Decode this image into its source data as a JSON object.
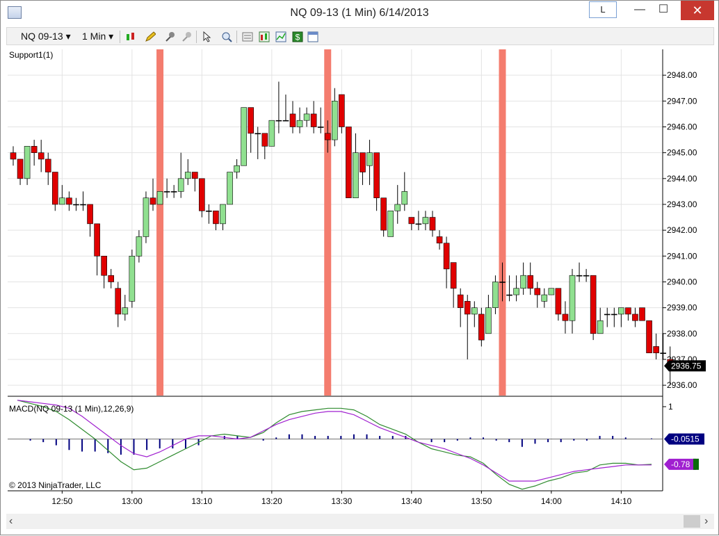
{
  "window": {
    "title": "NQ 09-13 (1 Min)  6/14/2013",
    "l_button": "L",
    "minimize": "—",
    "maximize": "☐",
    "close": "✕"
  },
  "toolbar": {
    "instrument": "NQ 09-13",
    "interval": "1 Min",
    "dropdown_glyph": "▾",
    "icons": [
      "candlestick-icon",
      "pencil-icon",
      "pin-icon",
      "magnet-icon",
      "cursor-icon",
      "zoom-icon",
      "properties-icon",
      "strategies-icon",
      "indicators-icon",
      "dollar-icon",
      "data-box-icon"
    ]
  },
  "labels": {
    "support": "Support1(1)",
    "macd": "MACD(NQ 09-13 (1 Min),12,26,9)",
    "copyright": "© 2013 NinjaTrader, LLC"
  },
  "colors": {
    "up": "#90e090",
    "down": "#e00000",
    "highlight": "#f47c6e",
    "macd_line": "#2e8b2e",
    "signal_line": "#a020d0",
    "histogram": "#000080"
  },
  "chart_data": [
    {
      "type": "candlestick",
      "title": "NQ 09-13 (1 Min)",
      "y_ticks": [
        "2948.00",
        "2947.00",
        "2946.00",
        "2945.00",
        "2944.00",
        "2943.00",
        "2942.00",
        "2941.00",
        "2940.00",
        "2939.00",
        "2938.00",
        "2937.00",
        "2936.00"
      ],
      "ylim": [
        2935.6,
        2949.0
      ],
      "x_ticks": [
        "12:50",
        "13:00",
        "13:10",
        "13:20",
        "13:30",
        "13:40",
        "13:50",
        "14:00",
        "14:10"
      ],
      "last_price": "2936.75",
      "highlight_times": [
        "13:04",
        "13:28",
        "13:53"
      ],
      "candles": [
        [
          2945,
          2944.75,
          2945.25,
          2944.5
        ],
        [
          2944.75,
          2944,
          2944.75,
          2943.75
        ],
        [
          2944,
          2945.25,
          2945.25,
          2943.75
        ],
        [
          2945.25,
          2945,
          2945.5,
          2944.5
        ],
        [
          2945,
          2944.75,
          2945.5,
          2944.25
        ],
        [
          2944.75,
          2944.25,
          2945,
          2943.75
        ],
        [
          2944.25,
          2943,
          2944.25,
          2942.75
        ],
        [
          2943,
          2943.25,
          2943.75,
          2943
        ],
        [
          2943.25,
          2943,
          2943.5,
          2942.75
        ],
        [
          2943,
          2943,
          2943.25,
          2942.75
        ],
        [
          2943,
          2943,
          2943.5,
          2942.75
        ],
        [
          2943,
          2942.25,
          2943,
          2941.75
        ],
        [
          2942.25,
          2941,
          2942.25,
          2940.25
        ],
        [
          2941,
          2940.25,
          2941,
          2939.75
        ],
        [
          2940.25,
          2940,
          2940.5,
          2939.75
        ],
        [
          2939.75,
          2938.75,
          2940,
          2938.25
        ],
        [
          2938.75,
          2939,
          2939.5,
          2938.5
        ],
        [
          2939.25,
          2941,
          2941.25,
          2939
        ],
        [
          2941,
          2941.75,
          2942,
          2940.75
        ],
        [
          2941.75,
          2943.25,
          2943.5,
          2941.5
        ],
        [
          2943.25,
          2943,
          2944,
          2942.75
        ],
        [
          2943,
          2943.5,
          2943.5,
          2943
        ],
        [
          2943.5,
          2943.5,
          2944,
          2943.25
        ],
        [
          2943.5,
          2943.5,
          2943.75,
          2943.25
        ],
        [
          2943.5,
          2944,
          2945,
          2943.25
        ],
        [
          2944,
          2944.25,
          2944.75,
          2943.75
        ],
        [
          2944.25,
          2944,
          2944.25,
          2943.5
        ],
        [
          2944,
          2942.75,
          2944,
          2942.5
        ],
        [
          2942.75,
          2942.75,
          2943,
          2942.25
        ],
        [
          2942.75,
          2942.25,
          2942.75,
          2942
        ],
        [
          2942.25,
          2943,
          2943,
          2942
        ],
        [
          2943,
          2944.25,
          2944.25,
          2943
        ],
        [
          2944.25,
          2944.5,
          2944.75,
          2944
        ],
        [
          2944.5,
          2946.75,
          2946.75,
          2944.5
        ],
        [
          2946.75,
          2945.75,
          2946.75,
          2945
        ],
        [
          2945.75,
          2945.75,
          2946,
          2944.75
        ],
        [
          2945.75,
          2945.25,
          2945.75,
          2944.75
        ],
        [
          2945.25,
          2946.25,
          2946.25,
          2945.25
        ],
        [
          2946.25,
          2946.25,
          2947.75,
          2945.75
        ],
        [
          2946.25,
          2946.25,
          2947.25,
          2946.25
        ],
        [
          2946.5,
          2946,
          2947,
          2945.75
        ],
        [
          2946,
          2946.25,
          2946.75,
          2945.75
        ],
        [
          2946.25,
          2946.5,
          2946.75,
          2946
        ],
        [
          2946.5,
          2946,
          2947,
          2945.75
        ],
        [
          2946,
          2946,
          2946.75,
          2945.75
        ],
        [
          2945.75,
          2945.5,
          2946.25,
          2945
        ],
        [
          2945.5,
          2947,
          2947.5,
          2945.25
        ],
        [
          2947.25,
          2946,
          2947.25,
          2945.75
        ],
        [
          2946,
          2943.25,
          2946,
          2943.25
        ],
        [
          2943.25,
          2945,
          2945.75,
          2943.25
        ],
        [
          2945,
          2944.25,
          2945,
          2943.75
        ],
        [
          2944.5,
          2945,
          2945.5,
          2943.75
        ],
        [
          2945,
          2943.25,
          2945,
          2942.75
        ],
        [
          2943.25,
          2942,
          2943.25,
          2941.75
        ],
        [
          2941.75,
          2942.75,
          2942.75,
          2941.75
        ],
        [
          2942.75,
          2943,
          2943.75,
          2942.25
        ],
        [
          2943,
          2943.5,
          2944.25,
          2942.75
        ],
        [
          2942.5,
          2942.25,
          2942.5,
          2942
        ],
        [
          2942.25,
          2942.25,
          2942.75,
          2942
        ],
        [
          2942.25,
          2942.5,
          2942.75,
          2942
        ],
        [
          2942.5,
          2942,
          2942.75,
          2941.75
        ],
        [
          2941.75,
          2941.5,
          2942,
          2941.25
        ],
        [
          2941.5,
          2940.5,
          2941.75,
          2939.75
        ],
        [
          2940.75,
          2939.75,
          2940.75,
          2939
        ],
        [
          2939.5,
          2939,
          2939.75,
          2938.25
        ],
        [
          2939.25,
          2938.75,
          2939.5,
          2937
        ],
        [
          2938.75,
          2939,
          2939.25,
          2938.25
        ],
        [
          2938.75,
          2937.75,
          2939,
          2937.5
        ],
        [
          2938,
          2939,
          2939.5,
          2938
        ],
        [
          2939,
          2940,
          2940.25,
          2938.75
        ],
        [
          2940,
          2940,
          2940.75,
          2939.25
        ],
        [
          2939.5,
          2939.5,
          2940.25,
          2939.25
        ],
        [
          2939.5,
          2939.75,
          2940.25,
          2939.25
        ],
        [
          2939.75,
          2940.25,
          2940.75,
          2939.5
        ],
        [
          2940.25,
          2939.75,
          2940.75,
          2939.5
        ],
        [
          2939.75,
          2939.5,
          2940,
          2939
        ],
        [
          2939.25,
          2939.5,
          2939.75,
          2939
        ],
        [
          2939.5,
          2939.75,
          2939.75,
          2939.5
        ],
        [
          2939.75,
          2938.75,
          2939.75,
          2938.5
        ],
        [
          2938.75,
          2938.5,
          2939.25,
          2938
        ],
        [
          2938.5,
          2940.25,
          2940.5,
          2938
        ],
        [
          2940.25,
          2940.25,
          2940.75,
          2940
        ],
        [
          2940.25,
          2940.25,
          2940.5,
          2940
        ],
        [
          2940.25,
          2938,
          2940.25,
          2937.75
        ],
        [
          2938,
          2938.5,
          2939,
          2938
        ],
        [
          2938.75,
          2938.75,
          2939,
          2938.25
        ],
        [
          2938.75,
          2938.75,
          2939,
          2938.25
        ],
        [
          2938.75,
          2939,
          2939,
          2938.25
        ],
        [
          2939,
          2938.75,
          2939,
          2938.5
        ],
        [
          2938.75,
          2938.5,
          2939,
          2938.25
        ],
        [
          2939,
          2938.5,
          2939,
          2938.5
        ],
        [
          2938.5,
          2937.25,
          2938.5,
          2937.25
        ],
        [
          2937.5,
          2937.25,
          2938,
          2937
        ],
        [
          2937.25,
          2937.25,
          2938,
          2937
        ],
        [
          2937,
          2936.75,
          2937.5,
          2936
        ]
      ]
    },
    {
      "type": "line",
      "title": "MACD(NQ 09-13 (1 Min),12,26,9)",
      "y_ticks": [
        "1"
      ],
      "ylim": [
        -1.6,
        1.3
      ],
      "series": [
        {
          "name": "MACD",
          "values": [
            1.2,
            1.1,
            1.0,
            0.85,
            0.6,
            0.3,
            0.0,
            -0.35,
            -0.7,
            -0.95,
            -0.9,
            -0.7,
            -0.5,
            -0.3,
            -0.1,
            0.1,
            0.15,
            0.1,
            0.05,
            0.2,
            0.5,
            0.75,
            0.85,
            0.9,
            0.95,
            0.95,
            0.9,
            0.7,
            0.45,
            0.3,
            0.15,
            -0.1,
            -0.3,
            -0.4,
            -0.5,
            -0.55,
            -0.75,
            -1.1,
            -1.4,
            -1.55,
            -1.45,
            -1.3,
            -1.2,
            -1.05,
            -1.0,
            -0.8,
            -0.75,
            -0.75,
            -0.8,
            -0.78
          ]
        },
        {
          "name": "Signal",
          "values": [
            1.2,
            1.15,
            1.1,
            1.05,
            0.95,
            0.7,
            0.4,
            0.1,
            -0.2,
            -0.45,
            -0.55,
            -0.4,
            -0.2,
            0.0,
            0.1,
            0.1,
            0.05,
            0.0,
            0.05,
            0.25,
            0.45,
            0.6,
            0.7,
            0.8,
            0.85,
            0.85,
            0.75,
            0.55,
            0.35,
            0.2,
            0.05,
            -0.1,
            -0.2,
            -0.3,
            -0.45,
            -0.6,
            -0.8,
            -1.05,
            -1.3,
            -1.3,
            -1.3,
            -1.2,
            -1.1,
            -1.0,
            -0.95,
            -0.9,
            -0.85,
            -0.8,
            -0.8,
            -0.8
          ]
        }
      ],
      "histogram_last": "-0.0515",
      "macd_last": "-0.78"
    }
  ]
}
